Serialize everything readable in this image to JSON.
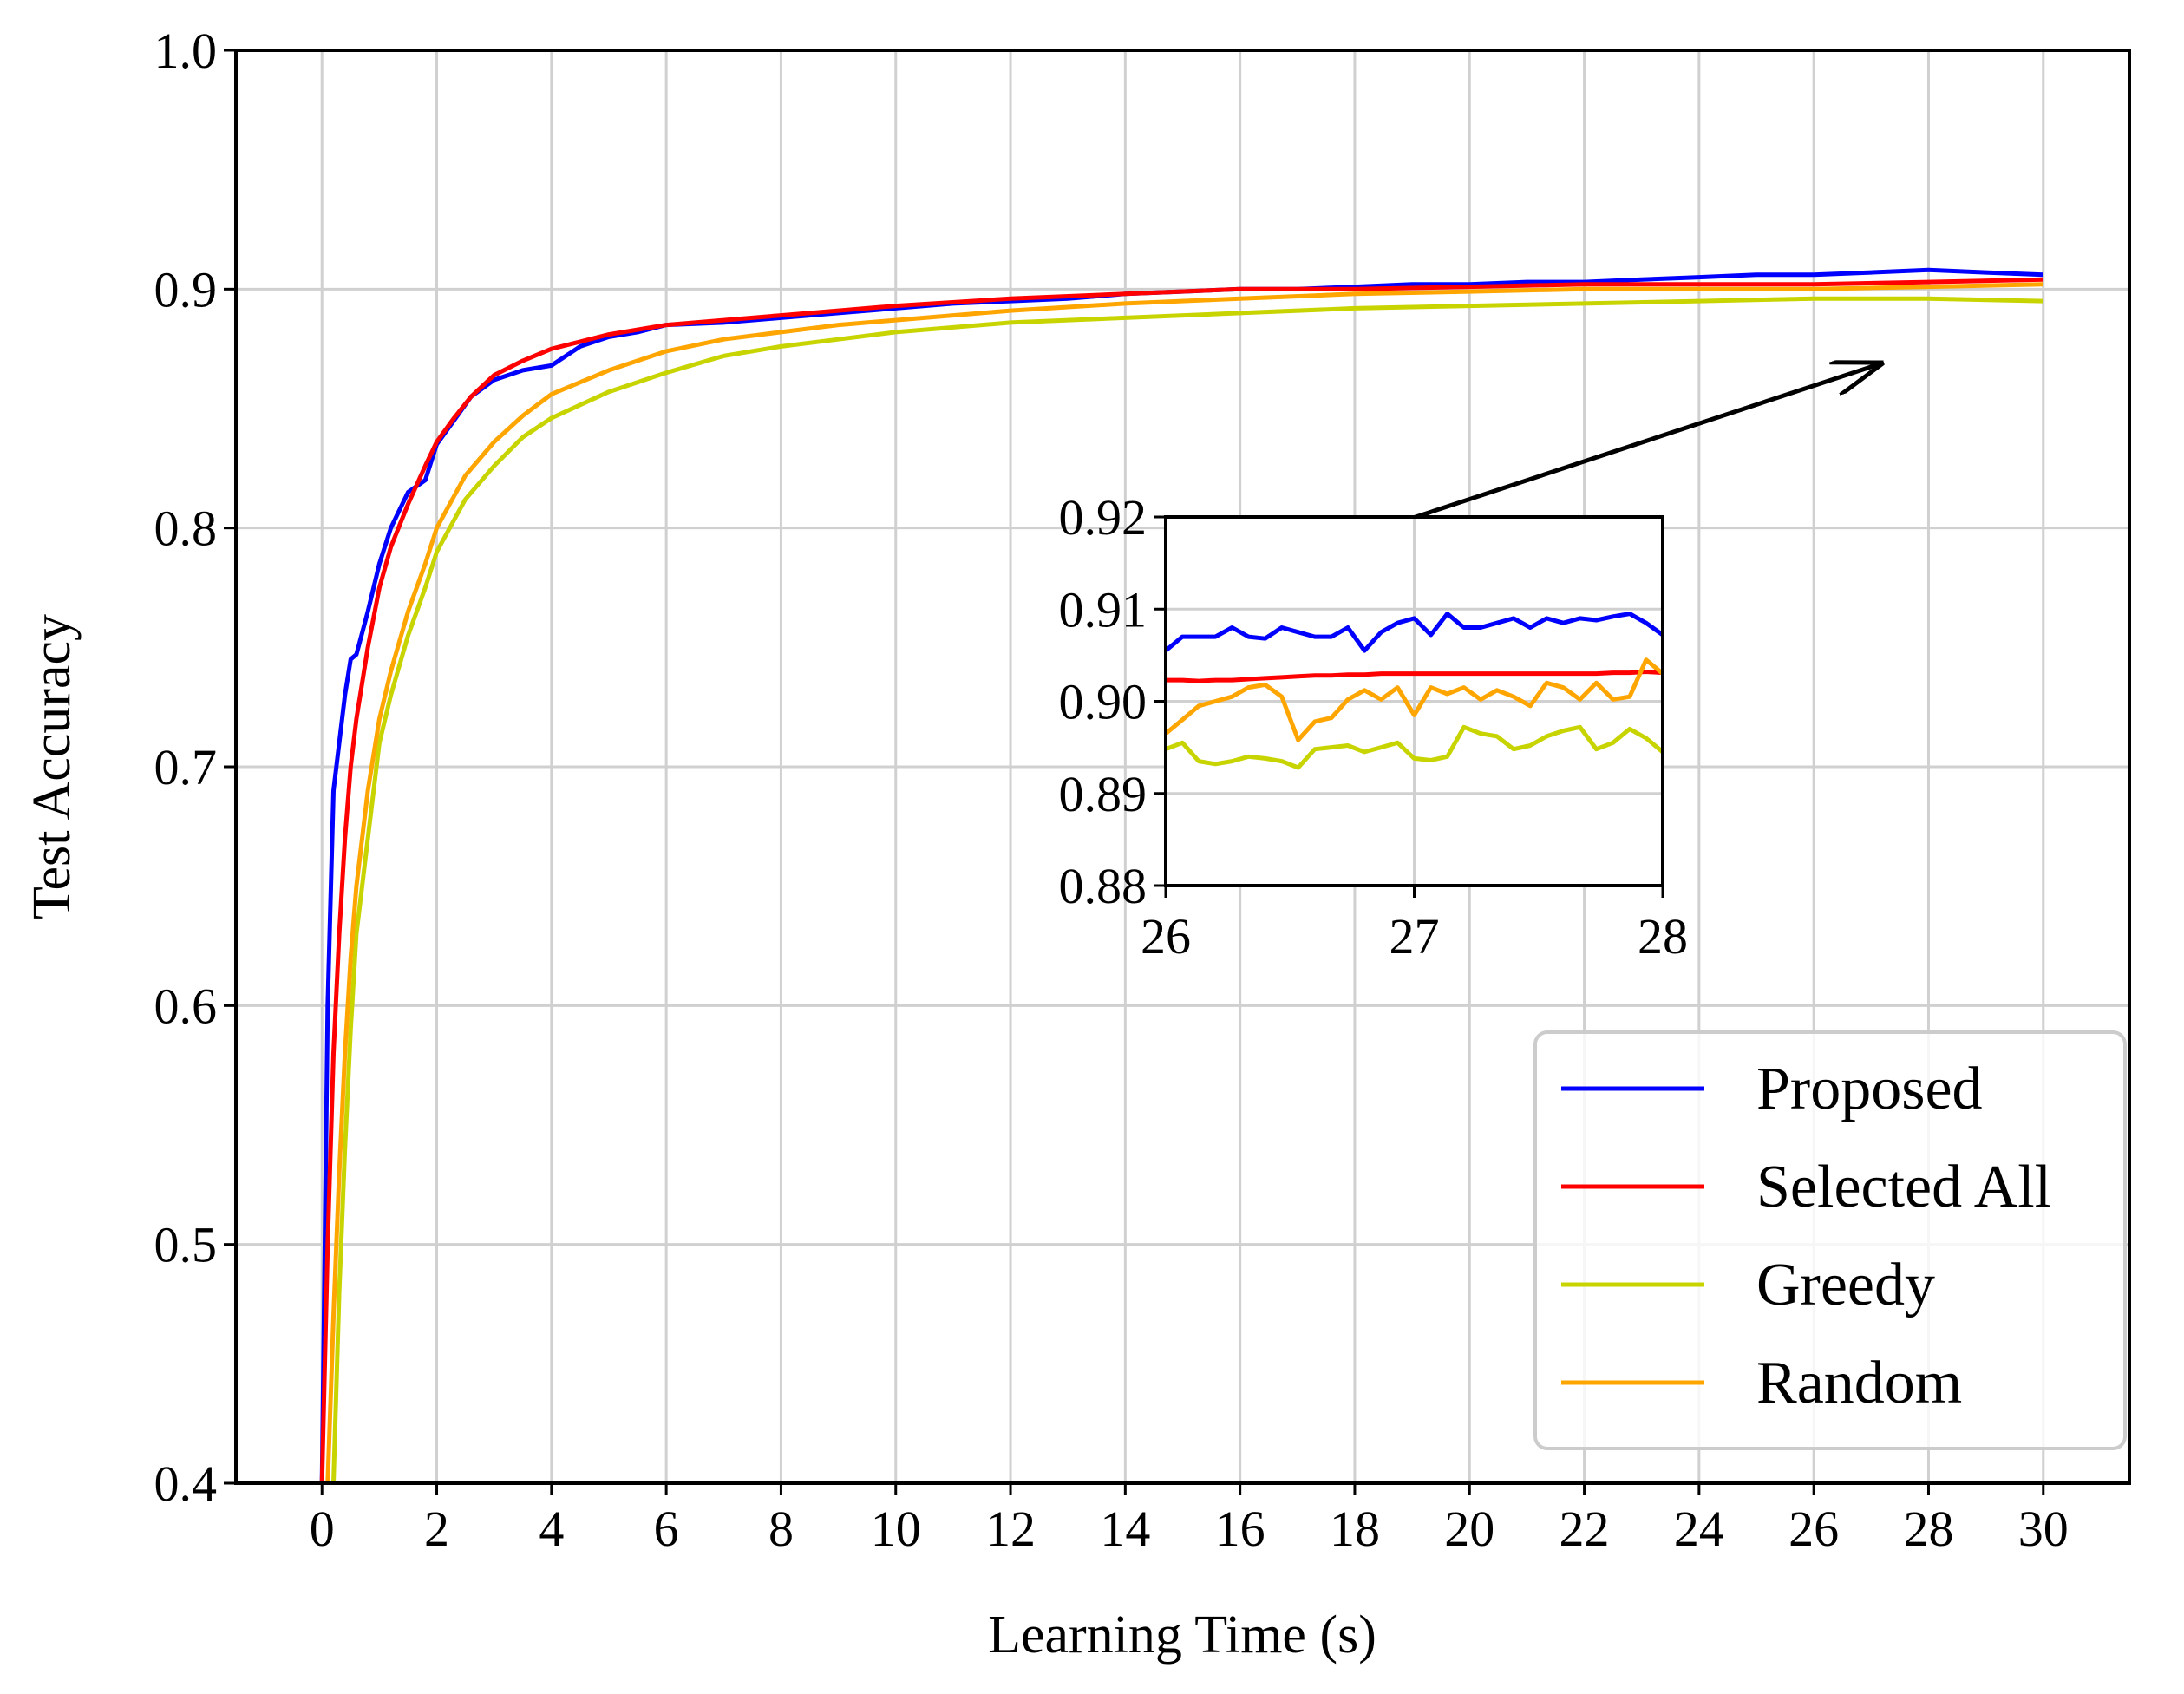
{
  "chart_data": [
    {
      "id": "main",
      "type": "line",
      "title": "",
      "xlabel": "Learning Time (s)",
      "ylabel": "Test Accuracy",
      "xlim": [
        -1.5,
        31.5
      ],
      "ylim": [
        0.4,
        1.0
      ],
      "xticks": [
        0,
        2,
        4,
        6,
        8,
        10,
        12,
        14,
        16,
        18,
        20,
        22,
        24,
        26,
        28,
        30
      ],
      "xtick_labels": [
        "0",
        "2",
        "4",
        "6",
        "8",
        "10",
        "12",
        "14",
        "16",
        "18",
        "20",
        "22",
        "24",
        "26",
        "28",
        "30"
      ],
      "yticks": [
        0.4,
        0.5,
        0.6,
        0.7,
        0.8,
        0.9,
        1.0
      ],
      "ytick_labels": [
        "0.4",
        "0.5",
        "0.6",
        "0.7",
        "0.8",
        "0.9",
        "1.0"
      ],
      "grid": true,
      "legend": "lower-right",
      "series": [
        {
          "name": "Proposed",
          "color": "#0000ff",
          "x": [
            0,
            0.1,
            0.2,
            0.3,
            0.4,
            0.5,
            0.6,
            0.8,
            1.0,
            1.2,
            1.5,
            1.8,
            2.0,
            2.3,
            2.6,
            3.0,
            3.5,
            4.0,
            4.5,
            5.0,
            5.5,
            6.0,
            7.0,
            8.0,
            9.0,
            10.0,
            11.0,
            12.0,
            13.0,
            14.0,
            15.0,
            16.0,
            17.0,
            18.0,
            19.0,
            20.0,
            21.0,
            22.0,
            23.0,
            24.0,
            25.0,
            26.0,
            27.0,
            28.0,
            29.0,
            30.0
          ],
          "y": [
            0.4,
            0.6,
            0.69,
            0.71,
            0.73,
            0.745,
            0.747,
            0.765,
            0.785,
            0.8,
            0.815,
            0.82,
            0.835,
            0.845,
            0.855,
            0.862,
            0.866,
            0.868,
            0.876,
            0.88,
            0.882,
            0.885,
            0.886,
            0.888,
            0.89,
            0.892,
            0.894,
            0.895,
            0.896,
            0.898,
            0.899,
            0.9,
            0.9,
            0.901,
            0.902,
            0.902,
            0.903,
            0.903,
            0.904,
            0.905,
            0.906,
            0.906,
            0.907,
            0.908,
            0.907,
            0.906
          ]
        },
        {
          "name": "Selected All",
          "color": "#ff0000",
          "x": [
            0,
            0.1,
            0.2,
            0.3,
            0.4,
            0.5,
            0.6,
            0.8,
            1.0,
            1.2,
            1.5,
            1.8,
            2.0,
            2.3,
            2.6,
            3.0,
            3.5,
            4.0,
            4.5,
            5.0,
            6.0,
            7.0,
            8.0,
            9.0,
            10.0,
            12.0,
            14.0,
            16.0,
            18.0,
            20.0,
            22.0,
            24.0,
            26.0,
            28.0,
            30.0
          ],
          "y": [
            0.4,
            0.5,
            0.58,
            0.63,
            0.67,
            0.7,
            0.72,
            0.75,
            0.775,
            0.792,
            0.81,
            0.826,
            0.836,
            0.846,
            0.855,
            0.864,
            0.87,
            0.875,
            0.878,
            0.881,
            0.885,
            0.887,
            0.889,
            0.891,
            0.893,
            0.896,
            0.898,
            0.9,
            0.9,
            0.901,
            0.902,
            0.902,
            0.902,
            0.903,
            0.904
          ]
        },
        {
          "name": "Greedy",
          "color": "#c8d400",
          "x": [
            0.2,
            0.3,
            0.4,
            0.5,
            0.6,
            0.8,
            1.0,
            1.2,
            1.5,
            1.8,
            2.0,
            2.5,
            3.0,
            3.5,
            4.0,
            5.0,
            6.0,
            7.0,
            8.0,
            9.0,
            10.0,
            12.0,
            14.0,
            16.0,
            18.0,
            20.0,
            22.0,
            24.0,
            26.0,
            28.0,
            30.0
          ],
          "y": [
            0.4,
            0.48,
            0.54,
            0.59,
            0.63,
            0.67,
            0.71,
            0.73,
            0.755,
            0.775,
            0.79,
            0.812,
            0.826,
            0.838,
            0.846,
            0.857,
            0.865,
            0.872,
            0.876,
            0.879,
            0.882,
            0.886,
            0.888,
            0.89,
            0.892,
            0.893,
            0.894,
            0.895,
            0.896,
            0.896,
            0.895
          ]
        },
        {
          "name": "Random",
          "color": "#ffa500",
          "x": [
            0.1,
            0.2,
            0.3,
            0.4,
            0.5,
            0.6,
            0.8,
            1.0,
            1.2,
            1.5,
            1.8,
            2.0,
            2.5,
            3.0,
            3.5,
            4.0,
            5.0,
            6.0,
            7.0,
            8.0,
            9.0,
            10.0,
            12.0,
            14.0,
            16.0,
            18.0,
            20.0,
            22.0,
            24.0,
            26.0,
            28.0,
            30.0
          ],
          "y": [
            0.4,
            0.47,
            0.53,
            0.58,
            0.62,
            0.65,
            0.69,
            0.72,
            0.74,
            0.765,
            0.785,
            0.8,
            0.822,
            0.836,
            0.847,
            0.856,
            0.866,
            0.874,
            0.879,
            0.882,
            0.885,
            0.887,
            0.891,
            0.894,
            0.896,
            0.898,
            0.899,
            0.9,
            0.9,
            0.9,
            0.901,
            0.902
          ]
        }
      ]
    },
    {
      "id": "inset",
      "type": "line",
      "title": "",
      "xlabel": "",
      "ylabel": "",
      "xlim": [
        26,
        28
      ],
      "ylim": [
        0.88,
        0.92
      ],
      "xticks": [
        26,
        27,
        28
      ],
      "xtick_labels": [
        "26",
        "27",
        "28"
      ],
      "yticks": [
        0.88,
        0.89,
        0.9,
        0.91,
        0.92
      ],
      "ytick_labels": [
        "0.88",
        "0.89",
        "0.90",
        "0.91",
        "0.92"
      ],
      "grid": true,
      "x": [
        26.0,
        26.067,
        26.133,
        26.2,
        26.267,
        26.333,
        26.4,
        26.467,
        26.533,
        26.6,
        26.667,
        26.733,
        26.8,
        26.867,
        26.933,
        27.0,
        27.067,
        27.133,
        27.2,
        27.267,
        27.333,
        27.4,
        27.467,
        27.533,
        27.6,
        27.667,
        27.733,
        27.8,
        27.867,
        27.933,
        28.0
      ],
      "series": [
        {
          "name": "Proposed",
          "color": "#0000ff",
          "y": [
            0.9055,
            0.907,
            0.907,
            0.907,
            0.908,
            0.907,
            0.9068,
            0.908,
            0.9075,
            0.907,
            0.907,
            0.908,
            0.9055,
            0.9075,
            0.9085,
            0.909,
            0.9072,
            0.9095,
            0.908,
            0.908,
            0.9085,
            0.909,
            0.908,
            0.909,
            0.9085,
            0.909,
            0.9088,
            0.9092,
            0.9095,
            0.9085,
            0.9072
          ]
        },
        {
          "name": "Selected All",
          "color": "#ff0000",
          "y": [
            0.9023,
            0.9023,
            0.9022,
            0.9023,
            0.9023,
            0.9024,
            0.9025,
            0.9026,
            0.9027,
            0.9028,
            0.9028,
            0.9029,
            0.9029,
            0.903,
            0.903,
            0.903,
            0.903,
            0.903,
            0.903,
            0.903,
            0.903,
            0.903,
            0.903,
            0.903,
            0.903,
            0.903,
            0.903,
            0.9031,
            0.9031,
            0.9032,
            0.9031
          ]
        },
        {
          "name": "Greedy",
          "color": "#c8d400",
          "y": [
            0.8948,
            0.8955,
            0.8935,
            0.8932,
            0.8935,
            0.894,
            0.8938,
            0.8935,
            0.8928,
            0.8948,
            0.895,
            0.8952,
            0.8945,
            0.895,
            0.8955,
            0.8938,
            0.8936,
            0.894,
            0.8972,
            0.8965,
            0.8962,
            0.8948,
            0.8952,
            0.8962,
            0.8968,
            0.8972,
            0.8948,
            0.8955,
            0.897,
            0.896,
            0.8945
          ]
        },
        {
          "name": "Random",
          "color": "#ffa500",
          "y": [
            0.8965,
            0.898,
            0.8995,
            0.9,
            0.9005,
            0.9015,
            0.9018,
            0.9005,
            0.8958,
            0.8978,
            0.8982,
            0.9002,
            0.9012,
            0.9002,
            0.9015,
            0.8985,
            0.9015,
            0.9008,
            0.9015,
            0.9002,
            0.9012,
            0.9005,
            0.8995,
            0.902,
            0.9015,
            0.9002,
            0.902,
            0.9002,
            0.9005,
            0.9045,
            0.903
          ]
        }
      ]
    }
  ]
}
